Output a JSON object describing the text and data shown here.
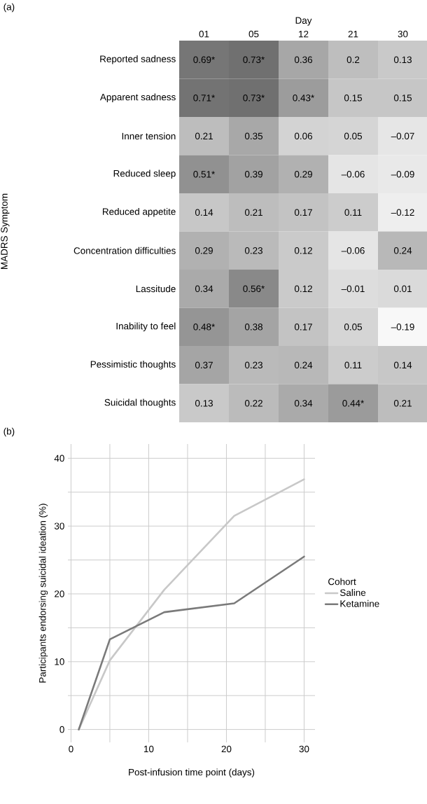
{
  "chart_data": [
    {
      "type": "heatmap",
      "xlabel": "Day",
      "ylabel": "MADRS Symptom",
      "annotations": [
        "(a)"
      ],
      "categories": [
        "01",
        "05",
        "12",
        "21",
        "30"
      ],
      "y_categories": [
        "Reported sadness",
        "Apparent sadness",
        "Inner tension",
        "Reduced sleep",
        "Reduced appetite",
        "Concentration difficulties",
        "Lassitude",
        "Inability to feel",
        "Pessimistic thoughts",
        "Suicidal thoughts"
      ],
      "cells": [
        [
          0.69,
          0.73,
          0.36,
          0.2,
          0.13
        ],
        [
          0.71,
          0.73,
          0.43,
          0.15,
          0.15
        ],
        [
          0.21,
          0.35,
          0.06,
          0.05,
          -0.07
        ],
        [
          0.51,
          0.39,
          0.29,
          -0.06,
          -0.09
        ],
        [
          0.14,
          0.21,
          0.17,
          0.11,
          -0.12
        ],
        [
          0.29,
          0.23,
          0.12,
          -0.06,
          0.24
        ],
        [
          0.34,
          0.56,
          0.12,
          -0.01,
          0.01
        ],
        [
          0.48,
          0.38,
          0.17,
          0.05,
          -0.19
        ],
        [
          0.37,
          0.23,
          0.24,
          0.11,
          0.14
        ],
        [
          0.13,
          0.22,
          0.34,
          0.44,
          0.21
        ]
      ],
      "cell_labels": [
        [
          "0.69*",
          "0.73*",
          "0.36",
          "0.2",
          "0.13"
        ],
        [
          "0.71*",
          "0.73*",
          "0.43*",
          "0.15",
          "0.15"
        ],
        [
          "0.21",
          "0.35",
          "0.06",
          "0.05",
          "–0.07"
        ],
        [
          "0.51*",
          "0.39",
          "0.29",
          "–0.06",
          "–0.09"
        ],
        [
          "0.14",
          "0.21",
          "0.17",
          "0.11",
          "–0.12"
        ],
        [
          "0.29",
          "0.23",
          "0.12",
          "–0.06",
          "0.24"
        ],
        [
          "0.34",
          "0.56*",
          "0.12",
          "–0.01",
          "0.01"
        ],
        [
          "0.48*",
          "0.38",
          "0.17",
          "0.05",
          "–0.19"
        ],
        [
          "0.37",
          "0.23",
          "0.24",
          "0.11",
          "0.14"
        ],
        [
          "0.13",
          "0.22",
          "0.34",
          "0.44*",
          "0.21"
        ]
      ]
    },
    {
      "type": "line",
      "xlabel": "Post-infusion time point (days)",
      "ylabel": "Participants endorsing suicidal ideation (%)",
      "annotations": [
        "(b)"
      ],
      "legend_title": "Cohort",
      "legend": "right",
      "grid": true,
      "x": [
        1,
        5,
        12,
        21,
        30
      ],
      "series": [
        {
          "name": "Saline",
          "color": "#c8c8c8",
          "values": [
            0,
            10.2,
            20.6,
            31.5,
            36.9
          ]
        },
        {
          "name": "Ketamine",
          "color": "#7a7a7a",
          "values": [
            0,
            13.3,
            17.3,
            18.6,
            25.5
          ]
        }
      ],
      "xlim": [
        -0.4,
        31.4
      ],
      "ylim": [
        -1.9,
        42.1
      ],
      "xticks": [
        0,
        10,
        20,
        30
      ],
      "yticks": [
        0,
        10,
        20,
        30,
        40
      ]
    }
  ]
}
